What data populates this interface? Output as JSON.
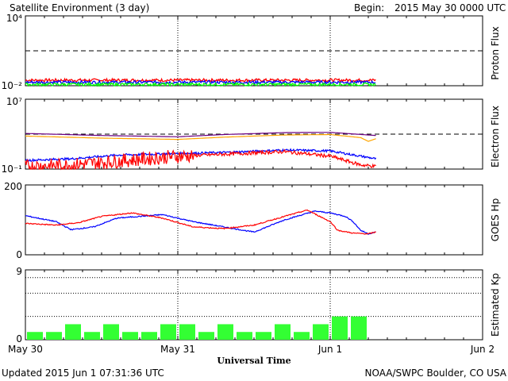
{
  "title": "Satellite Environment (3 day)",
  "begin_label": "Begin:",
  "begin_value": "2015 May 30 0000 UTC",
  "footer_updated": "Updated 2015 Jun  1 07:31:36 UTC",
  "footer_source": "NOAA/SWPC Boulder, CO USA",
  "colors": {
    "red": "#ff0000",
    "blue": "#0000ff",
    "green": "#00ff00",
    "purple": "#6a0080",
    "orange": "#ffa500",
    "bar": "#33ff33"
  },
  "chart_data": [
    {
      "type": "line",
      "panel": "Proton Flux",
      "ylabel": "Proton Flux",
      "scale": "log",
      "ylim": [
        0.01,
        10000
      ],
      "ytick_labels": [
        "10⁴",
        "10⁻²"
      ],
      "threshold": 10,
      "xlim_days": [
        0,
        3
      ],
      "data_end_day": 2.3,
      "series": [
        {
          "color": "red",
          "level": 0.03
        },
        {
          "color": "blue",
          "level": 0.02
        },
        {
          "color": "green",
          "level": 0.013
        }
      ]
    },
    {
      "type": "line",
      "panel": "Electron Flux",
      "ylabel": "Electron Flux",
      "scale": "log",
      "ylim": [
        0.1,
        10000000
      ],
      "ytick_labels": [
        "10⁷",
        "10⁻¹"
      ],
      "threshold": 1000,
      "xlim_days": [
        0,
        3
      ],
      "data_end_day": 2.3,
      "series": [
        {
          "color": "purple",
          "x": [
            0,
            0.5,
            1.0,
            1.3,
            1.7,
            2.0,
            2.25,
            2.3
          ],
          "y": [
            1200,
            700,
            500,
            900,
            1500,
            1600,
            800,
            700
          ]
        },
        {
          "color": "orange",
          "x": [
            0,
            0.5,
            1.0,
            1.3,
            1.7,
            2.0,
            2.2,
            2.25,
            2.3
          ],
          "y": [
            600,
            350,
            250,
            450,
            800,
            900,
            400,
            150,
            300
          ]
        },
        {
          "color": "blue",
          "x": [
            0,
            0.3,
            0.6,
            1.0,
            1.3,
            1.7,
            2.0,
            2.2,
            2.3
          ],
          "y": [
            1,
            1.5,
            4,
            6,
            8,
            15,
            12,
            3,
            1.5
          ]
        },
        {
          "color": "red",
          "x": [
            0,
            0.3,
            0.6,
            1.0,
            1.3,
            1.7,
            2.0,
            2.2,
            2.3
          ],
          "y": [
            0.2,
            0.3,
            0.8,
            3,
            5,
            10,
            3,
            0.3,
            0.2
          ]
        }
      ]
    },
    {
      "type": "line",
      "panel": "GOES Hp",
      "ylabel": "GOES Hp",
      "ylim": [
        0,
        200
      ],
      "ytick_labels": [
        "200",
        "0"
      ],
      "xlim_days": [
        0,
        3
      ],
      "series": [
        {
          "color": "blue",
          "x": [
            0,
            0.2,
            0.3,
            0.45,
            0.6,
            0.9,
            1.1,
            1.3,
            1.5,
            1.7,
            1.9,
            2.0,
            2.1,
            2.15,
            2.2,
            2.25,
            2.3
          ],
          "y": [
            112,
            95,
            72,
            80,
            105,
            115,
            95,
            80,
            65,
            100,
            125,
            120,
            110,
            95,
            70,
            60,
            65
          ]
        },
        {
          "color": "red",
          "x": [
            0,
            0.2,
            0.35,
            0.5,
            0.7,
            0.9,
            1.1,
            1.3,
            1.5,
            1.7,
            1.85,
            2.0,
            2.05,
            2.15,
            2.25,
            2.3
          ],
          "y": [
            90,
            85,
            92,
            110,
            120,
            105,
            80,
            75,
            85,
            110,
            128,
            95,
            70,
            62,
            60,
            65
          ]
        }
      ]
    },
    {
      "type": "bar",
      "panel": "Estimated Kp",
      "ylabel": "Estimated Kp",
      "ylim": [
        0,
        9
      ],
      "ytick_labels": [
        "9",
        "0"
      ],
      "bar_interval_hours": 3,
      "values": [
        1,
        1,
        2,
        1,
        2,
        1,
        1,
        2,
        2,
        1,
        2,
        1,
        1,
        2,
        1,
        2,
        3,
        3
      ]
    }
  ],
  "x_axis": {
    "ticks": [
      "May 30",
      "May 31",
      "Jun 1",
      "Jun 2"
    ],
    "label": "Universal Time"
  }
}
